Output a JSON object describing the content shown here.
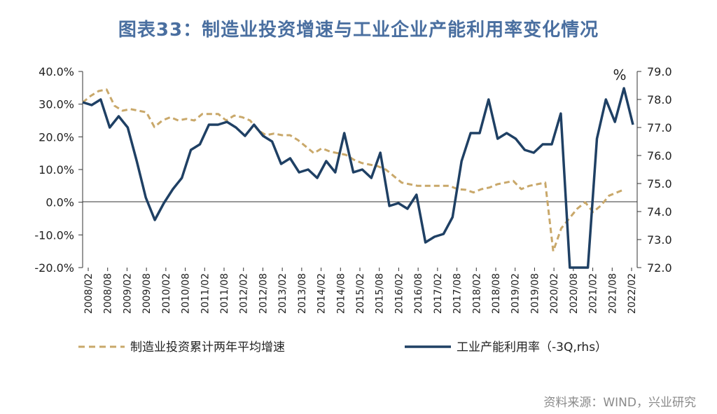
{
  "title": "图表33：制造业投资增速与工业企业产能利用率变化情况",
  "source": "资料来源：WIND，兴业研究",
  "chart_data": {
    "type": "line",
    "unit_right": "%",
    "y_left": {
      "ticks": [
        "40.0%",
        "30.0%",
        "20.0%",
        "10.0%",
        "0.0%",
        "-10.0%",
        "-20.0%"
      ],
      "range": [
        -20,
        40
      ]
    },
    "y_right": {
      "ticks": [
        "79.0",
        "78.0",
        "77.0",
        "76.0",
        "75.0",
        "74.0",
        "73.0",
        "72.0"
      ],
      "range": [
        72,
        79
      ]
    },
    "x_ticks": [
      "2008/02",
      "2008/08",
      "2009/02",
      "2009/08",
      "2010/02",
      "2010/08",
      "2011/02",
      "2011/08",
      "2012/02",
      "2012/08",
      "2013/02",
      "2013/08",
      "2014/02",
      "2014/08",
      "2015/02",
      "2015/08",
      "2016/02",
      "2016/08",
      "2017/02",
      "2017/08",
      "2018/02",
      "2018/08",
      "2019/02",
      "2019/08",
      "2020/02",
      "2020/08",
      "2021/02",
      "2021/08",
      "2022/02"
    ],
    "series": [
      {
        "name": "制造业投资累计两年平均增速",
        "axis": "left",
        "color": "#c9a86a",
        "dash": true,
        "values": [
          30.5,
          32.5,
          34,
          34.5,
          29.5,
          28,
          28.5,
          28,
          27.5,
          23,
          25,
          26,
          25,
          25.5,
          25,
          27,
          27,
          27,
          25,
          26.5,
          26,
          25,
          22,
          20.5,
          21,
          20.5,
          20.5,
          19,
          17,
          15,
          16.5,
          15.5,
          15,
          14.5,
          13,
          12,
          11.5,
          11,
          10,
          8,
          6,
          5.5,
          5,
          5,
          5,
          5,
          5,
          4,
          3.8,
          3,
          4,
          4.5,
          5.5,
          6,
          6.5,
          4,
          5,
          5.5,
          6,
          -15,
          -8,
          -5,
          -2,
          0,
          -3,
          -1,
          2,
          3,
          4,
          null
        ]
      },
      {
        "name": "工业产能利用率（-3Q,rhs）",
        "axis": "right",
        "color": "#1f4064",
        "dash": false,
        "values": [
          77.9,
          77.8,
          78.0,
          77.0,
          77.4,
          77.0,
          75.8,
          74.5,
          73.7,
          74.3,
          74.8,
          75.2,
          76.2,
          76.4,
          77.1,
          77.1,
          77.2,
          77.0,
          76.7,
          77.1,
          76.7,
          76.5,
          75.7,
          75.9,
          75.4,
          75.5,
          75.2,
          75.8,
          75.4,
          76.8,
          75.4,
          75.5,
          75.2,
          76.1,
          74.2,
          74.3,
          74.1,
          74.6,
          72.9,
          73.1,
          73.2,
          73.8,
          75.8,
          76.8,
          76.8,
          78.0,
          76.6,
          76.8,
          76.6,
          76.2,
          76.1,
          76.4,
          76.4,
          77.5,
          71.5,
          71.0,
          71.5,
          76.6,
          78.0,
          77.2,
          78.4,
          77.1
        ]
      }
    ],
    "legend_position": "bottom"
  }
}
